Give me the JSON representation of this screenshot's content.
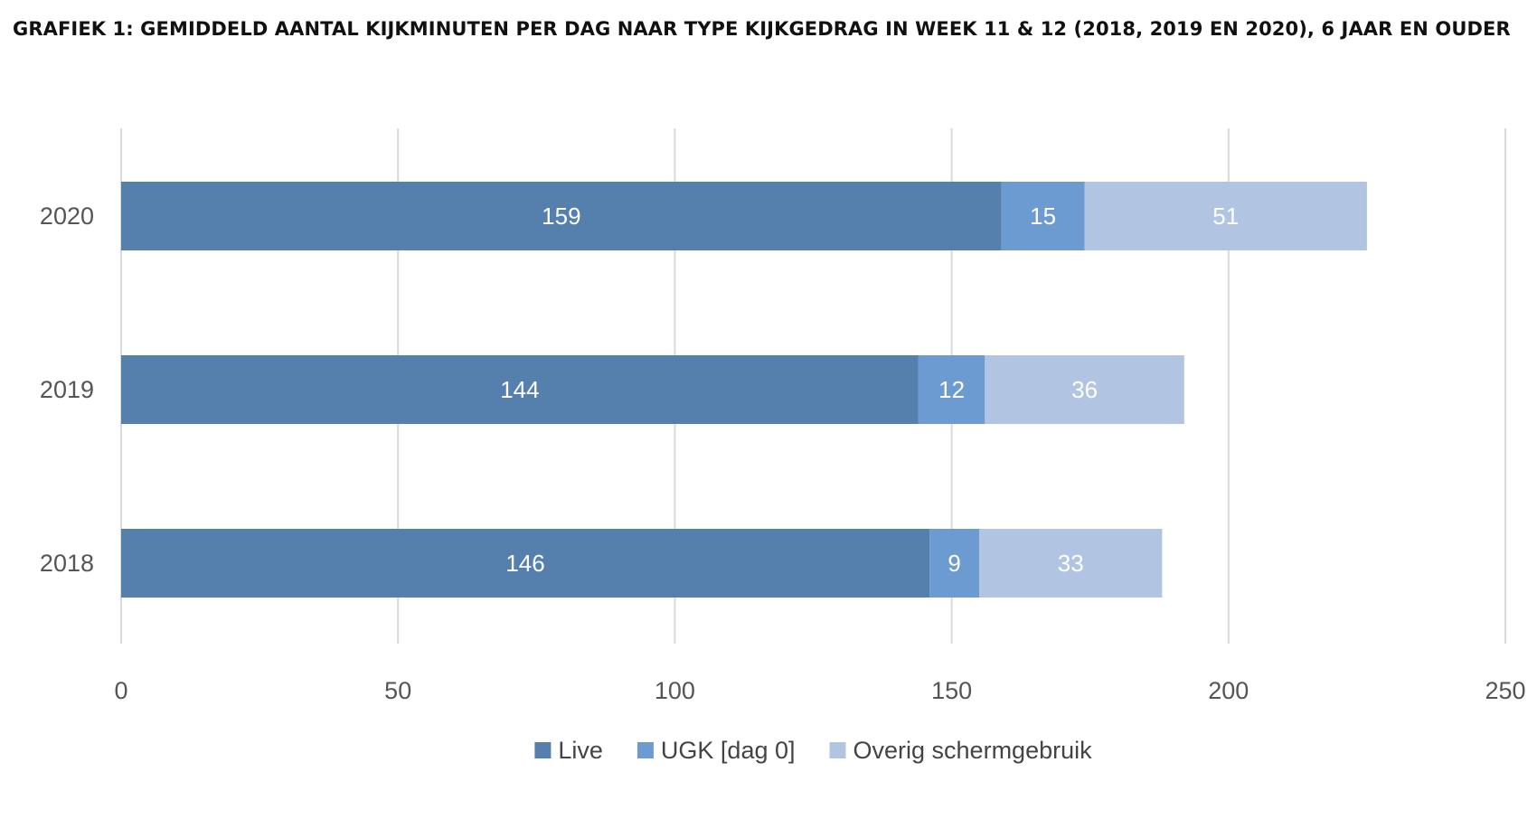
{
  "chart_data": {
    "type": "bar",
    "orientation": "horizontal",
    "stacked": true,
    "title": "GRAFIEK 1: GEMIDDELD AANTAL KIJKMINUTEN PER DAG NAAR TYPE KIJKGEDRAG IN WEEK 11 & 12 (2018, 2019 EN 2020), 6 JAAR EN OUDER",
    "categories": [
      "2020",
      "2019",
      "2018"
    ],
    "series": [
      {
        "name": "Live",
        "color": "#5580ad",
        "values": [
          159,
          144,
          146
        ]
      },
      {
        "name": "UGK [dag 0]",
        "color": "#6b9bd1",
        "values": [
          15,
          12,
          9
        ]
      },
      {
        "name": "Overig schermgebruik",
        "color": "#b1c5e3",
        "values": [
          51,
          36,
          33
        ]
      }
    ],
    "xlim": [
      0,
      250
    ],
    "xticks": [
      0,
      50,
      100,
      150,
      200,
      250
    ],
    "xlabel": "",
    "ylabel": "",
    "grid": "vertical",
    "legend": "bottom-center"
  }
}
